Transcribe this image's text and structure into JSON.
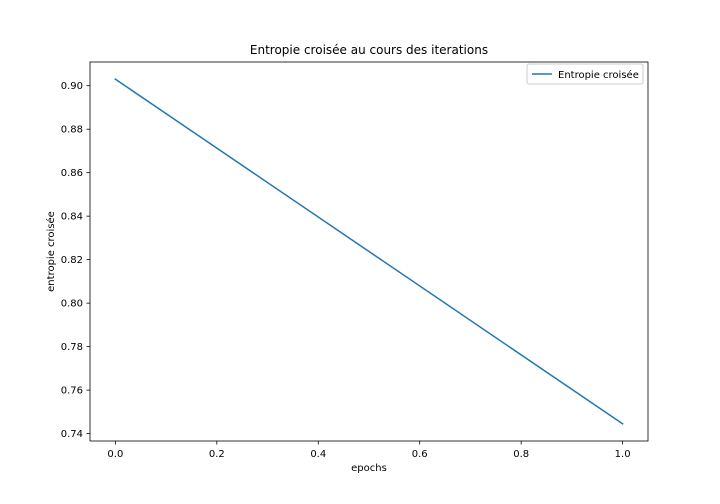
{
  "chart_data": {
    "type": "line",
    "title": "Entropie croisée au cours des iterations",
    "xlabel": "epochs",
    "ylabel": "entropie croisée",
    "x": [
      0.0,
      1.0
    ],
    "series": [
      {
        "name": "Entropie croisée",
        "values": [
          0.903,
          0.7445
        ],
        "color": "#1f77b4"
      }
    ],
    "xlim": [
      -0.05,
      1.05
    ],
    "ylim": [
      0.7366,
      0.9109
    ],
    "xticks": [
      0.0,
      0.2,
      0.4,
      0.6,
      0.8,
      1.0
    ],
    "xtick_labels": [
      "0.0",
      "0.2",
      "0.4",
      "0.6",
      "0.8",
      "1.0"
    ],
    "yticks": [
      0.74,
      0.76,
      0.78,
      0.8,
      0.82,
      0.84,
      0.86,
      0.88,
      0.9
    ],
    "ytick_labels": [
      "0.74",
      "0.76",
      "0.78",
      "0.80",
      "0.82",
      "0.84",
      "0.86",
      "0.88",
      "0.90"
    ],
    "grid": false,
    "legend_position": "top-right"
  }
}
